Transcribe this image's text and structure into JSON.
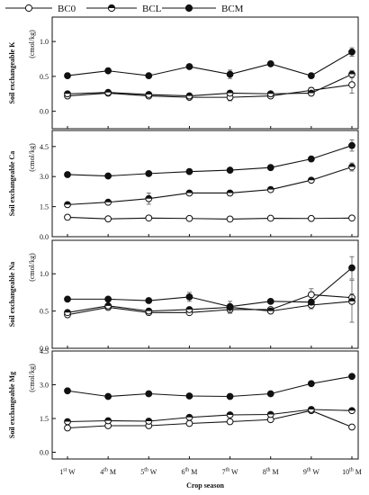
{
  "chart_data": {
    "type": "line",
    "categories": [
      {
        "num": "1",
        "sup": "st",
        "letter": "W"
      },
      {
        "num": "4",
        "sup": "th",
        "letter": "M"
      },
      {
        "num": "5",
        "sup": "th",
        "letter": "W"
      },
      {
        "num": "6",
        "sup": "th",
        "letter": "M"
      },
      {
        "num": "7",
        "sup": "th",
        "letter": "W"
      },
      {
        "num": "8",
        "sup": "th",
        "letter": "M"
      },
      {
        "num": "9",
        "sup": "th",
        "letter": "W"
      },
      {
        "num": "10",
        "sup": "th",
        "letter": "M"
      }
    ],
    "xlabel": "Crop season",
    "legend": {
      "position": "top",
      "entries": [
        {
          "name": "BC0",
          "marker": "open-circle"
        },
        {
          "name": "BCL",
          "marker": "half-circle"
        },
        {
          "name": "BCM",
          "marker": "filled-circle"
        }
      ]
    },
    "panels": [
      {
        "ylabel": "Soil exchangeable K",
        "unit": "(cmol/kg)",
        "ylim": [
          -0.25,
          1.35
        ],
        "yticks": [
          "0.0",
          "0.5",
          "1.0"
        ],
        "ytick_values": [
          0.0,
          0.5,
          1.0
        ],
        "series": [
          {
            "name": "BC0",
            "values": [
              0.22,
              0.26,
              0.22,
              0.2,
              0.2,
              0.22,
              0.3,
              0.38
            ],
            "err": [
              0.02,
              0.02,
              0.02,
              0.02,
              0.05,
              0.02,
              0.04,
              0.12
            ]
          },
          {
            "name": "BCL",
            "values": [
              0.25,
              0.27,
              0.24,
              0.22,
              0.26,
              0.25,
              0.26,
              0.53
            ],
            "err": [
              0.02,
              0.02,
              0.02,
              0.02,
              0.03,
              0.02,
              0.02,
              0.05
            ]
          },
          {
            "name": "BCM",
            "values": [
              0.51,
              0.58,
              0.51,
              0.64,
              0.53,
              0.68,
              0.51,
              0.85
            ],
            "err": [
              0.02,
              0.03,
              0.02,
              0.03,
              0.06,
              0.03,
              0.03,
              0.06
            ]
          }
        ]
      },
      {
        "ylabel": "Soil exchangeable Ca",
        "unit": "(cmol/kg)",
        "ylim": [
          0.0,
          5.3
        ],
        "yticks": [
          "0.0",
          "1.5",
          "3.0",
          "4.5"
        ],
        "ytick_values": [
          0.0,
          1.5,
          3.0,
          4.5
        ],
        "series": [
          {
            "name": "BC0",
            "values": [
              0.97,
              0.89,
              0.93,
              0.91,
              0.88,
              0.92,
              0.91,
              0.93
            ],
            "err": [
              0.12,
              0.05,
              0.05,
              0.05,
              0.05,
              0.05,
              0.05,
              0.05
            ]
          },
          {
            "name": "BCL",
            "values": [
              1.6,
              1.72,
              1.9,
              2.18,
              2.18,
              2.35,
              2.82,
              3.48
            ],
            "err": [
              0.06,
              0.08,
              0.28,
              0.08,
              0.08,
              0.12,
              0.08,
              0.2
            ]
          },
          {
            "name": "BCM",
            "values": [
              3.1,
              3.03,
              3.15,
              3.25,
              3.32,
              3.45,
              3.88,
              4.55
            ],
            "err": [
              0.06,
              0.06,
              0.06,
              0.06,
              0.06,
              0.06,
              0.06,
              0.28
            ]
          }
        ]
      },
      {
        "ylabel": "Soil exchangeable Na",
        "unit": "(cmol/kg)",
        "ylim": [
          0.0,
          1.45
        ],
        "yticks": [
          "0.0",
          "0.5",
          "1.0"
        ],
        "ytick_values": [
          0.0,
          0.5,
          1.0
        ],
        "series": [
          {
            "name": "BC0",
            "values": [
              0.45,
              0.55,
              0.48,
              0.48,
              0.52,
              0.52,
              0.72,
              0.68
            ],
            "err": [
              0.02,
              0.02,
              0.02,
              0.02,
              0.05,
              0.02,
              0.08,
              0.05
            ]
          },
          {
            "name": "BCL",
            "values": [
              0.48,
              0.57,
              0.5,
              0.52,
              0.55,
              0.5,
              0.58,
              0.63
            ],
            "err": [
              0.02,
              0.02,
              0.02,
              0.02,
              0.08,
              0.02,
              0.05,
              0.28
            ]
          },
          {
            "name": "BCM",
            "values": [
              0.66,
              0.66,
              0.64,
              0.69,
              0.56,
              0.63,
              0.62,
              1.08
            ],
            "err": [
              0.02,
              0.02,
              0.02,
              0.06,
              0.02,
              0.02,
              0.02,
              0.15
            ]
          }
        ]
      },
      {
        "ylabel": "Soil exchangeable Mg",
        "unit": "(cmol/kg)",
        "ylim": [
          -0.3,
          4.5
        ],
        "yticks": [
          "0.0",
          "1.5",
          "3.0",
          "4.5"
        ],
        "ytick_values": [
          0.0,
          1.5,
          3.0,
          4.5
        ],
        "series": [
          {
            "name": "BC0",
            "values": [
              1.08,
              1.18,
              1.18,
              1.28,
              1.36,
              1.45,
              1.85,
              1.12
            ],
            "err": [
              0.05,
              0.05,
              0.05,
              0.05,
              0.05,
              0.05,
              0.08,
              0.08
            ]
          },
          {
            "name": "BCL",
            "values": [
              1.36,
              1.4,
              1.38,
              1.55,
              1.66,
              1.68,
              1.9,
              1.85
            ],
            "err": [
              0.05,
              0.05,
              0.05,
              0.05,
              0.05,
              0.05,
              0.05,
              0.06
            ]
          },
          {
            "name": "BCM",
            "values": [
              2.73,
              2.48,
              2.6,
              2.5,
              2.48,
              2.6,
              3.05,
              3.37
            ],
            "err": [
              0.08,
              0.06,
              0.06,
              0.06,
              0.06,
              0.06,
              0.06,
              0.1
            ]
          }
        ]
      }
    ]
  }
}
